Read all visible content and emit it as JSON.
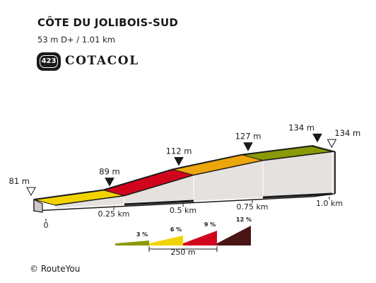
{
  "chart_data": {
    "type": "area",
    "title": "CÔTE DU JOLIBOIS-SUD",
    "stats": "53 m D+ / 1.01 km",
    "x_unit": "km",
    "y_unit": "m",
    "distance_km": 1.01,
    "xlim": [
      0,
      1.01
    ],
    "ylim": [
      81,
      134
    ],
    "profile": [
      {
        "km": 0.0,
        "elevation": 81
      },
      {
        "km": 0.25,
        "elevation": 89
      },
      {
        "km": 0.5,
        "elevation": 112
      },
      {
        "km": 0.75,
        "elevation": 127
      },
      {
        "km": 1.0,
        "elevation": 134
      }
    ],
    "point_labels": [
      {
        "km": 0.0,
        "label": "81 m",
        "marker": "hollow"
      },
      {
        "km": 0.25,
        "label": "89 m",
        "marker": "filled"
      },
      {
        "km": 0.5,
        "label": "112 m",
        "marker": "filled"
      },
      {
        "km": 0.75,
        "label": "127 m",
        "marker": "filled"
      },
      {
        "km": 1.0,
        "label": "134 m",
        "marker": "filled"
      },
      {
        "km": 1.01,
        "label": "134 m",
        "marker": "hollow"
      }
    ],
    "segments": [
      {
        "from_km": 0.0,
        "to_km": 0.25,
        "color": "#f2d300"
      },
      {
        "from_km": 0.25,
        "to_km": 0.5,
        "color": "#d0051d"
      },
      {
        "from_km": 0.5,
        "to_km": 0.75,
        "color": "#eda60b"
      },
      {
        "from_km": 0.75,
        "to_km": 1.0,
        "color": "#8a9a06"
      },
      {
        "from_km": 1.0,
        "to_km": 1.01,
        "color": "#8a9a06"
      }
    ],
    "x_ticks": [
      {
        "km": 0,
        "label": "0"
      },
      {
        "km": 0.25,
        "label": "0.25 km"
      },
      {
        "km": 0.5,
        "label": "0.5 km"
      },
      {
        "km": 0.75,
        "label": "0.75 km"
      },
      {
        "km": 1.0,
        "label": "1.0 km"
      }
    ],
    "legend": {
      "items": [
        {
          "label": "3 %",
          "color": "#8a9a06"
        },
        {
          "label": "6 %",
          "color": "#f2d300"
        },
        {
          "label": "9 %",
          "color": "#d0051d"
        },
        {
          "label": "12 %",
          "color": "#4a1414"
        }
      ],
      "scale_label": "250 m"
    },
    "colors": {
      "face": "#e5e1de",
      "outline": "#1a1a1a",
      "top_face": "#ededed"
    }
  },
  "branding": {
    "badge_number": "423",
    "name": "COTACOL"
  },
  "footer": {
    "copyright": "© RouteYou"
  }
}
